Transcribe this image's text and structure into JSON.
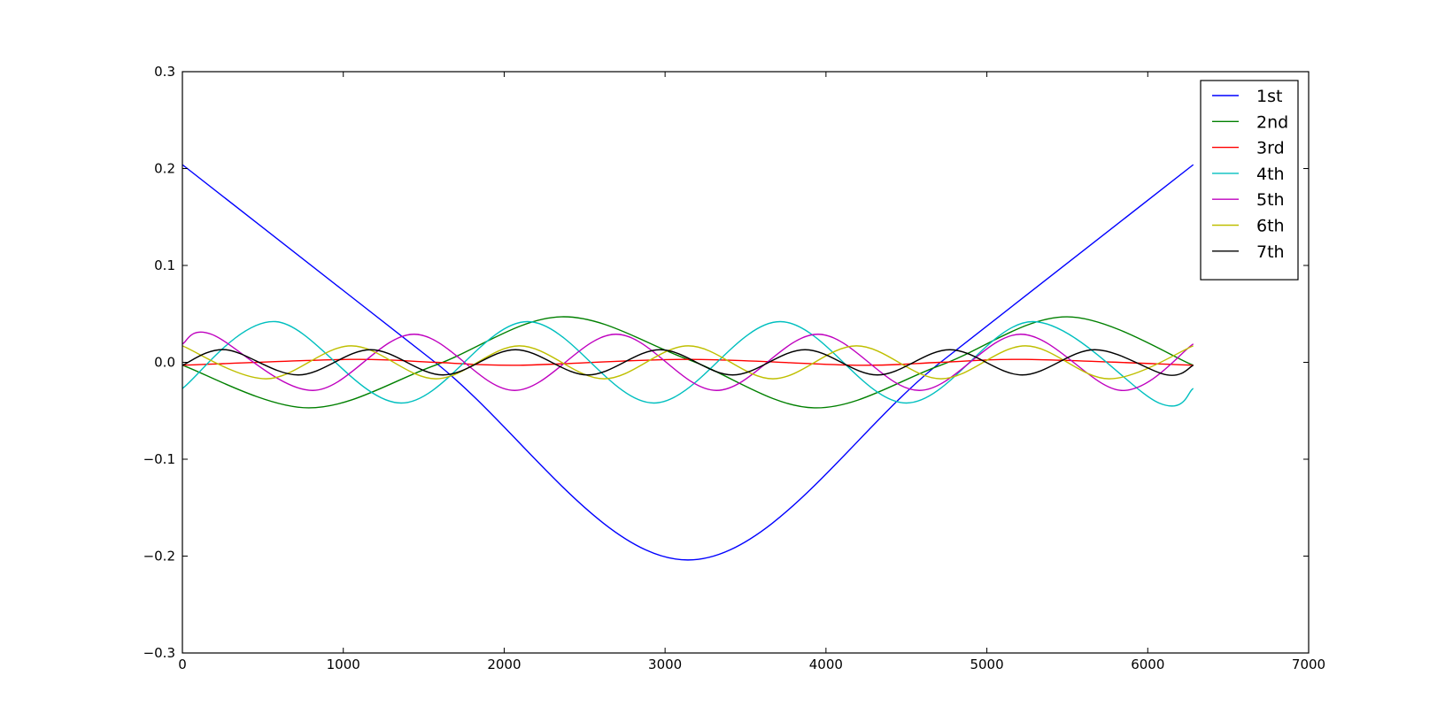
{
  "chart_data": {
    "type": "line",
    "title": "",
    "xlabel": "",
    "ylabel": "",
    "xlim": [
      0,
      7000
    ],
    "ylim": [
      -0.3,
      0.3
    ],
    "xticks": [
      0,
      1000,
      2000,
      3000,
      4000,
      5000,
      6000,
      7000
    ],
    "yticks": [
      -0.3,
      -0.2,
      -0.1,
      0.0,
      0.1,
      0.2,
      0.3
    ],
    "xtick_labels": [
      "0",
      "1000",
      "2000",
      "3000",
      "4000",
      "5000",
      "6000",
      "7000"
    ],
    "ytick_labels": [
      "−0.3",
      "−0.2",
      "−0.1",
      "0.0",
      "0.1",
      "0.2",
      "0.3"
    ],
    "grid": false,
    "legend_position": "top-right",
    "x_max_data": 6283,
    "series": [
      {
        "name": "1st",
        "color": "#0000ff",
        "x": [
          0,
          1571,
          3142,
          4712,
          6283
        ],
        "y": [
          0.204,
          0.0,
          -0.204,
          0.0,
          0.204
        ]
      },
      {
        "name": "2nd",
        "color": "#008000",
        "x": [
          0,
          785,
          1571,
          2356,
          3142,
          3927,
          4712,
          5498,
          6283
        ],
        "y": [
          -0.003,
          -0.047,
          -0.003,
          0.047,
          0.003,
          -0.047,
          -0.003,
          0.047,
          -0.003
        ]
      },
      {
        "name": "3rd",
        "color": "#ff0000",
        "x": [
          0,
          1047,
          1571,
          2094,
          3142,
          4189,
          4712,
          5236,
          6283
        ],
        "y": [
          -0.003,
          0.003,
          0.0,
          -0.003,
          0.003,
          -0.003,
          0.0,
          0.003,
          -0.003
        ]
      },
      {
        "name": "4th",
        "color": "#00bfbf",
        "x": [
          0,
          580,
          1360,
          2145,
          2930,
          3715,
          4500,
          5285,
          6070,
          6283
        ],
        "y": [
          -0.027,
          0.042,
          -0.042,
          0.042,
          -0.042,
          0.042,
          -0.042,
          0.042,
          -0.042,
          -0.027
        ]
      },
      {
        "name": "5th",
        "color": "#bf00bf",
        "x": [
          0,
          180,
          810,
          1440,
          2065,
          2695,
          3320,
          3950,
          4580,
          5210,
          5835,
          6283
        ],
        "y": [
          0.019,
          0.029,
          -0.029,
          0.029,
          -0.029,
          0.029,
          -0.029,
          0.029,
          -0.029,
          0.029,
          -0.029,
          0.019
        ]
      },
      {
        "name": "6th",
        "color": "#bfbf00",
        "x": [
          0,
          520,
          1050,
          1575,
          2095,
          2620,
          3145,
          3670,
          4190,
          4715,
          5240,
          5760,
          6283
        ],
        "y": [
          0.017,
          -0.017,
          0.017,
          -0.017,
          0.017,
          -0.017,
          0.017,
          -0.017,
          0.017,
          -0.017,
          0.017,
          -0.017,
          0.017
        ]
      },
      {
        "name": "7th",
        "color": "#000000",
        "x": [
          0,
          270,
          720,
          1170,
          1620,
          2070,
          2520,
          2970,
          3420,
          3870,
          4320,
          4770,
          5220,
          5670,
          6120,
          6283
        ],
        "y": [
          -0.003,
          0.013,
          -0.013,
          0.013,
          -0.013,
          0.013,
          -0.013,
          0.013,
          -0.013,
          0.013,
          -0.013,
          0.013,
          -0.013,
          0.013,
          -0.013,
          -0.003
        ]
      }
    ]
  }
}
